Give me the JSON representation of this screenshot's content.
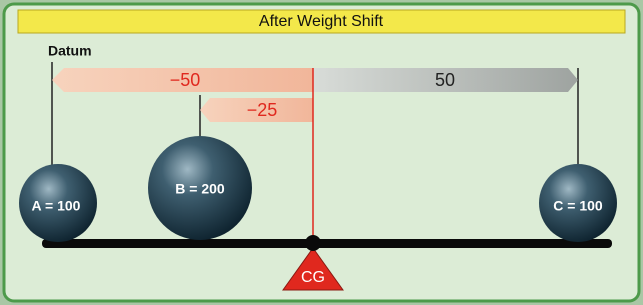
{
  "header": {
    "title": "After Weight Shift"
  },
  "datum": "Datum",
  "arrows": [
    {
      "label": "−50"
    },
    {
      "label": "50"
    },
    {
      "label": "−25"
    }
  ],
  "weights": [
    {
      "label": "A = 100"
    },
    {
      "label": "B = 200"
    },
    {
      "label": "C = 100"
    }
  ],
  "cg": "CG"
}
